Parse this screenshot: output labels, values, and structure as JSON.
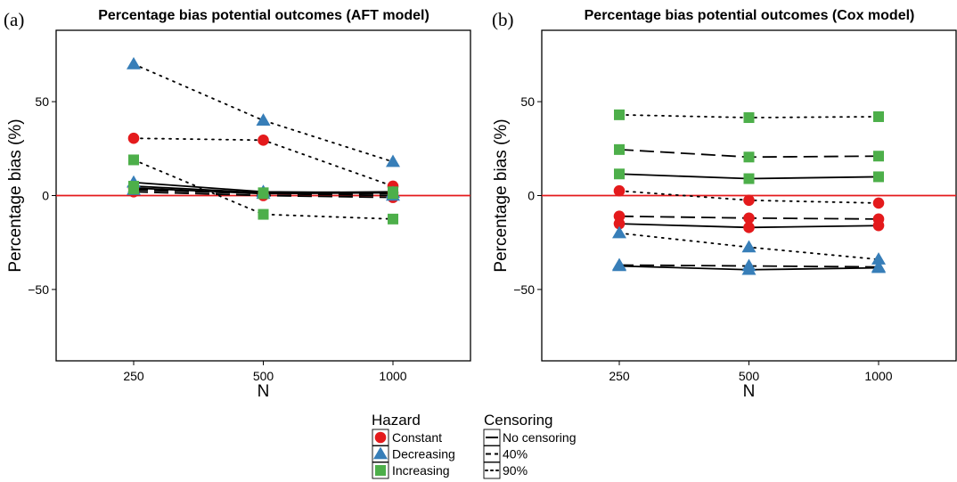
{
  "chart_data": [
    {
      "panel_tag": "(a)",
      "type": "line",
      "title": "Percentage bias potential outcomes (AFT model)",
      "xlabel": "N",
      "ylabel": "Percentage bias (%)",
      "x_ticks": [
        "250",
        "500",
        "1000"
      ],
      "y_ticks": [
        -50,
        0,
        50
      ],
      "ylim": [
        -88,
        88
      ],
      "reference_line": {
        "y": 0,
        "color": "#e41a1c"
      },
      "series": [
        {
          "hazard": "Constant",
          "censoring": "No censoring",
          "values": [
            4,
            1,
            1.5
          ]
        },
        {
          "hazard": "Constant",
          "censoring": "40%",
          "values": [
            2,
            0,
            -1
          ]
        },
        {
          "hazard": "Constant",
          "censoring": "90%",
          "values": [
            30.5,
            29.5,
            5
          ]
        },
        {
          "hazard": "Decreasing",
          "censoring": "No censoring",
          "values": [
            7,
            2,
            1.5
          ]
        },
        {
          "hazard": "Decreasing",
          "censoring": "40%",
          "values": [
            3,
            1,
            0
          ]
        },
        {
          "hazard": "Decreasing",
          "censoring": "90%",
          "values": [
            70,
            40,
            18
          ]
        },
        {
          "hazard": "Increasing",
          "censoring": "No censoring",
          "values": [
            5,
            1.5,
            2
          ]
        },
        {
          "hazard": "Increasing",
          "censoring": "40%",
          "values": [
            3.5,
            1,
            1
          ]
        },
        {
          "hazard": "Increasing",
          "censoring": "90%",
          "values": [
            19,
            -10,
            -12.5
          ]
        }
      ]
    },
    {
      "panel_tag": "(b)",
      "type": "line",
      "title": "Percentage bias potential outcomes (Cox model)",
      "xlabel": "N",
      "ylabel": "Percentage bias (%)",
      "x_ticks": [
        "250",
        "500",
        "1000"
      ],
      "y_ticks": [
        -50,
        0,
        50
      ],
      "ylim": [
        -88,
        88
      ],
      "reference_line": {
        "y": 0,
        "color": "#e41a1c"
      },
      "series": [
        {
          "hazard": "Constant",
          "censoring": "No censoring",
          "values": [
            -15,
            -17,
            -16
          ]
        },
        {
          "hazard": "Constant",
          "censoring": "40%",
          "values": [
            -11,
            -12,
            -12.5
          ]
        },
        {
          "hazard": "Constant",
          "censoring": "90%",
          "values": [
            2.5,
            -2.5,
            -4
          ]
        },
        {
          "hazard": "Decreasing",
          "censoring": "No censoring",
          "values": [
            -37.5,
            -39.5,
            -38.5
          ]
        },
        {
          "hazard": "Decreasing",
          "censoring": "40%",
          "values": [
            -37,
            -37.5,
            -38
          ]
        },
        {
          "hazard": "Decreasing",
          "censoring": "90%",
          "values": [
            -20,
            -27.5,
            -34
          ]
        },
        {
          "hazard": "Increasing",
          "censoring": "No censoring",
          "values": [
            11.5,
            9,
            10
          ]
        },
        {
          "hazard": "Increasing",
          "censoring": "40%",
          "values": [
            24.5,
            20.5,
            21
          ]
        },
        {
          "hazard": "Increasing",
          "censoring": "90%",
          "values": [
            43,
            41.5,
            42
          ]
        }
      ]
    }
  ],
  "legend": {
    "hazard_title": "Hazard",
    "hazard_items": [
      {
        "label": "Constant",
        "shape": "circle-icon",
        "color": "#e41a1c"
      },
      {
        "label": "Decreasing",
        "shape": "triangle-icon",
        "color": "#377eb8"
      },
      {
        "label": "Increasing",
        "shape": "square-icon",
        "color": "#4daf4a"
      }
    ],
    "censoring_title": "Censoring",
    "censoring_items": [
      {
        "label": "No censoring",
        "linetype": "solid"
      },
      {
        "label": "40%",
        "linetype": "dashed"
      },
      {
        "label": "90%",
        "linetype": "dotted"
      }
    ]
  }
}
